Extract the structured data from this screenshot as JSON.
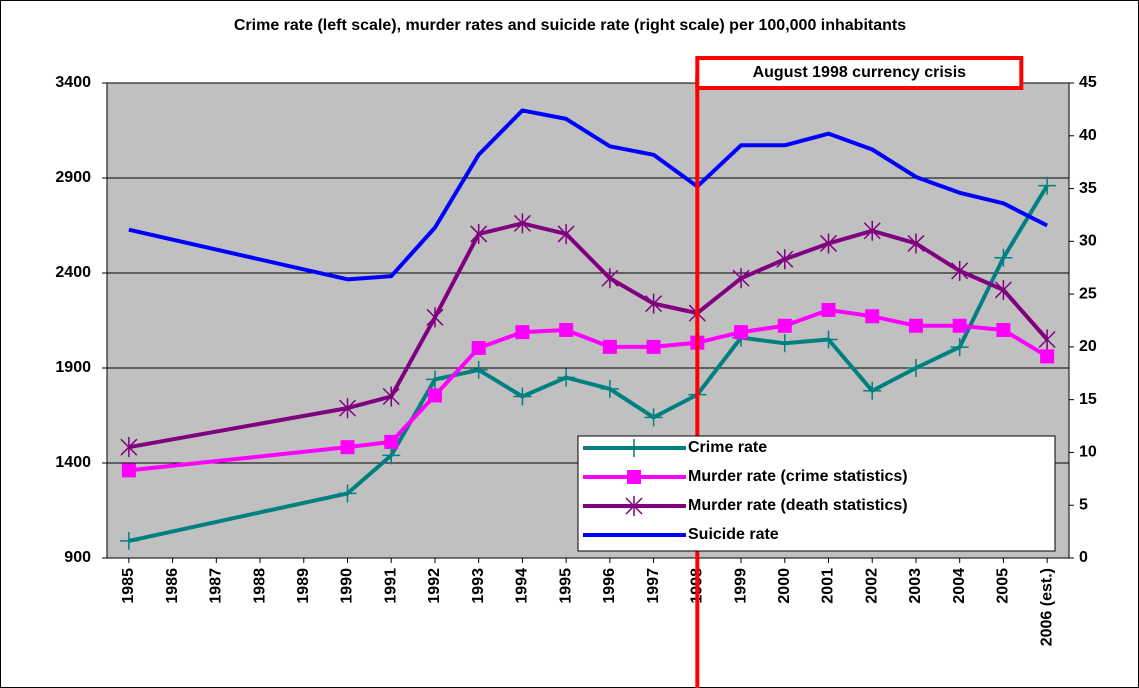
{
  "chart_data": {
    "type": "line",
    "title": "Crime rate (left scale),  murder rates and suicide rate (right scale) per 100,000 inhabitants",
    "x": [
      1985,
      1990,
      1991,
      1992,
      1993,
      1994,
      1995,
      1996,
      1997,
      1998,
      1999,
      2000,
      2001,
      2002,
      2003,
      2004,
      2005,
      2006
    ],
    "xlim": [
      1984.5,
      2006.5
    ],
    "xticks": [
      1985,
      1986,
      1987,
      1988,
      1989,
      1990,
      1991,
      1992,
      1993,
      1994,
      1995,
      1996,
      1997,
      1998,
      1999,
      2000,
      2001,
      2002,
      2003,
      2004,
      2005,
      {
        "value": 2006,
        "label": "2006 (est.)"
      }
    ],
    "ylim": [
      900,
      3400
    ],
    "yticks": [
      900,
      1400,
      1900,
      2400,
      2900,
      3400
    ],
    "y2lim": [
      0,
      45
    ],
    "y2ticks": [
      0,
      5,
      10,
      15,
      20,
      25,
      30,
      35,
      40,
      45
    ],
    "grid": true,
    "legend": "lower right",
    "series": [
      {
        "name": "Crime rate",
        "color": "#008080",
        "marker": "plus",
        "values": [
          990,
          1240,
          1440,
          1840,
          1890,
          1750,
          1850,
          1790,
          1640,
          1760,
          2060,
          2030,
          2050,
          1780,
          1900,
          2010,
          2480,
          2860
        ]
      },
      {
        "name": "Murder rate (crime statistics)",
        "color": "#ff00ff",
        "marker": "square",
        "axis": "y2",
        "values": [
          8.3,
          10.5,
          11.0,
          15.4,
          19.9,
          21.4,
          21.6,
          20.0,
          20.0,
          20.4,
          21.4,
          22.0,
          23.5,
          22.9,
          22.0,
          22.0,
          21.6,
          19.1
        ]
      },
      {
        "name": "Murder rate (death statistics)",
        "color": "#800080",
        "marker": "asterisk",
        "axis": "y2",
        "values": [
          10.5,
          14.2,
          15.3,
          22.8,
          30.7,
          31.7,
          30.7,
          26.5,
          24.1,
          23.2,
          26.5,
          28.3,
          29.8,
          31.0,
          29.8,
          27.2,
          25.4,
          20.7
        ]
      },
      {
        "name": "Suicide rate",
        "color": "#0000ff",
        "marker": "none",
        "axis": "y2",
        "values": [
          31.1,
          26.4,
          26.7,
          31.3,
          38.2,
          42.4,
          41.6,
          39.0,
          38.2,
          35.2,
          39.1,
          39.1,
          40.2,
          38.7,
          36.1,
          34.6,
          33.6,
          31.5
        ]
      }
    ],
    "annotation": {
      "text": "August 1998 currency crisis",
      "x": 1998,
      "color": "#ff0000"
    }
  }
}
